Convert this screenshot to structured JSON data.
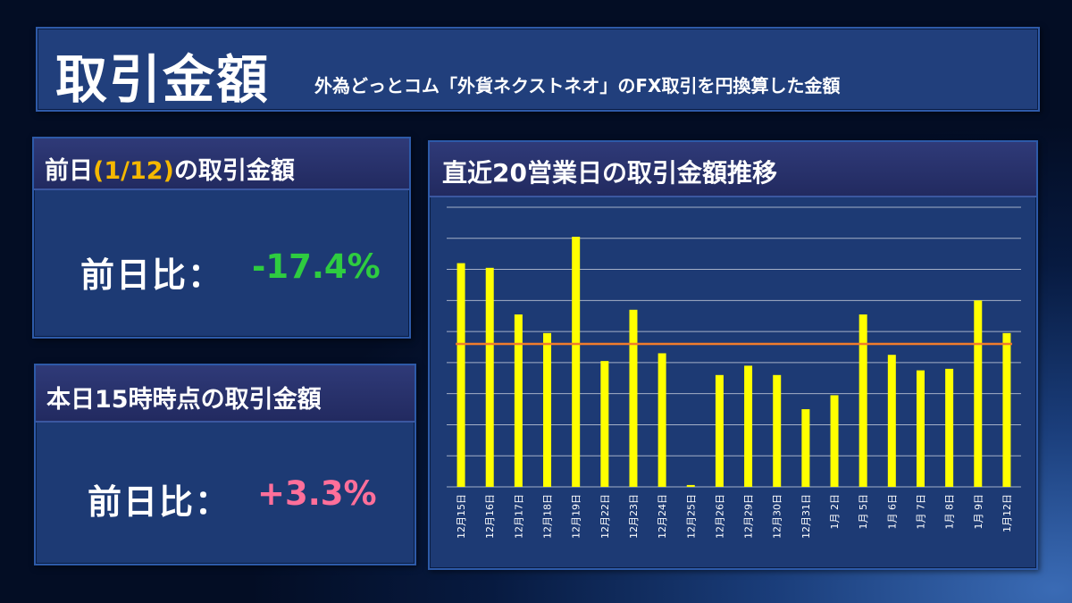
{
  "header": {
    "title": "取引金額",
    "subtitle": "外為どっとコム「外貨ネクストネオ」のFX取引を円換算した金額"
  },
  "prev_day_panel": {
    "title_prefix": "前日",
    "title_date": "(1/12)",
    "title_suffix": "の取引金額",
    "comparison_label": "前日比：",
    "comparison_value": "-17.4%",
    "value_color": "#2ecc40"
  },
  "today_panel": {
    "title": "本日15時時点の取引金額",
    "comparison_label": "前日比：",
    "comparison_value": "+3.3%",
    "value_color": "#ff6f9a"
  },
  "chart_data": {
    "type": "bar",
    "title": "直近20営業日の取引金額推移",
    "categories": [
      "12月15日",
      "12月16日",
      "12月17日",
      "12月18日",
      "12月19日",
      "12月22日",
      "12月23日",
      "12月24日",
      "12月25日",
      "12月26日",
      "12月29日",
      "12月30日",
      "12月31日",
      "1月 2日",
      "1月 5日",
      "1月 6日",
      "1月 7日",
      "1月 8日",
      "1月 9日",
      "1月12日"
    ],
    "values": [
      7.2,
      7.05,
      5.55,
      4.95,
      8.05,
      4.05,
      5.7,
      4.3,
      0.06,
      3.6,
      3.9,
      3.6,
      2.5,
      2.95,
      5.55,
      4.25,
      3.75,
      3.8,
      6.0,
      4.95
    ],
    "average": 4.6,
    "ylim": [
      0,
      9
    ],
    "grid_lines": 9,
    "grid": true,
    "bar_color": "#ffff00",
    "average_line_color": "#f07c2c",
    "xlabel": "",
    "ylabel": ""
  }
}
